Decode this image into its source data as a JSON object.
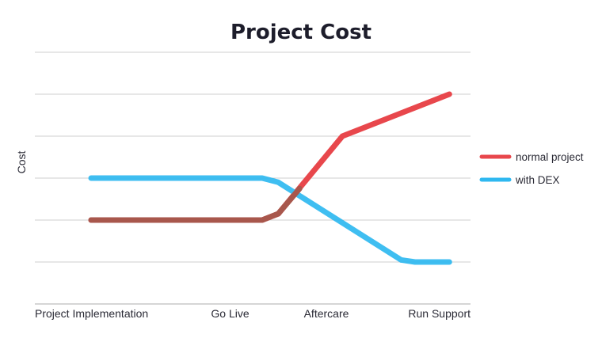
{
  "chart_data": {
    "type": "line",
    "title": "Project Cost",
    "xlabel": "",
    "ylabel": "Cost",
    "categories": [
      "Project Implementation",
      "Go Live",
      "Aftercare",
      "Run Support"
    ],
    "x": [
      0,
      1,
      2,
      3
    ],
    "ylim": [
      0,
      6
    ],
    "grid": true,
    "legend_position": "right",
    "series": [
      {
        "name": "normal project",
        "color": "#e8474c",
        "points": [
          [
            0,
            2
          ],
          [
            1.6,
            2
          ],
          [
            1.75,
            2.15
          ],
          [
            2.35,
            4
          ],
          [
            3.35,
            5
          ]
        ]
      },
      {
        "name": "with DEX",
        "color": "#2fb8f0",
        "points": [
          [
            0,
            3
          ],
          [
            1.6,
            3
          ],
          [
            1.75,
            2.9
          ],
          [
            2.9,
            1.05
          ],
          [
            3.03,
            1
          ],
          [
            3.35,
            1
          ]
        ]
      }
    ],
    "overlap_color": "#a8574c"
  }
}
